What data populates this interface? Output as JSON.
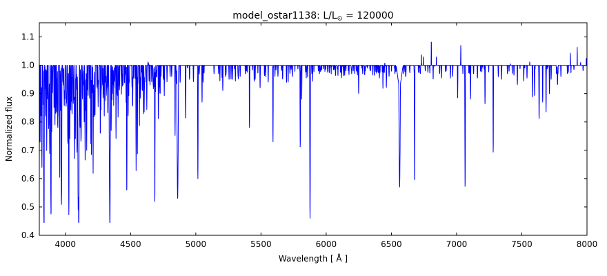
{
  "figure": {
    "title_parts": {
      "prefix": "model_ostar1138: L/L",
      "sun_symbol": "⊙",
      "suffix": " = 120000"
    },
    "background": "#ffffff",
    "frame_color": "#000000"
  },
  "chart_data": {
    "type": "line",
    "title": "model_ostar1138: L/L⊙ = 120000",
    "xlabel": "Wavelength [ Å ]",
    "ylabel": "Normalized flux",
    "xlim": [
      3800,
      8000
    ],
    "ylim": [
      0.4,
      1.15
    ],
    "xticks": [
      4000,
      4500,
      5000,
      5500,
      6000,
      6500,
      7000,
      7500,
      8000
    ],
    "yticks": [
      0.4,
      0.5,
      0.6,
      0.7,
      0.8,
      0.9,
      1.0,
      1.1
    ],
    "grid": false,
    "legend": null,
    "line_color": "#0000ff",
    "continuum": 1.0,
    "series_name": "normalized-flux-spectrum",
    "spectral_lines": [
      [
        3799,
        0.62,
        3
      ],
      [
        3806,
        0.72
      ],
      [
        3813,
        0.82
      ],
      [
        3820,
        0.64
      ],
      [
        3829,
        0.86
      ],
      [
        3835,
        0.51,
        3.5
      ],
      [
        3847,
        0.9
      ],
      [
        3857,
        0.83
      ],
      [
        3863,
        0.88
      ],
      [
        3872,
        0.92
      ],
      [
        3879,
        0.85
      ],
      [
        3889,
        0.5,
        3.5
      ],
      [
        3900,
        0.92
      ],
      [
        3913,
        0.85
      ],
      [
        3920,
        0.79
      ],
      [
        3927,
        0.88
      ],
      [
        3934,
        0.83
      ],
      [
        3944,
        0.82
      ],
      [
        3957,
        0.72
      ],
      [
        3964,
        0.84
      ],
      [
        3970,
        0.52,
        3.5
      ],
      [
        3985,
        0.93
      ],
      [
        3995,
        0.88
      ],
      [
        4004,
        0.91
      ],
      [
        4009,
        0.87
      ],
      [
        4019,
        0.75
      ],
      [
        4026,
        0.58,
        3
      ],
      [
        4035,
        0.9
      ],
      [
        4042,
        0.88
      ],
      [
        4051,
        0.92
      ],
      [
        4062,
        0.9
      ],
      [
        4070,
        0.66
      ],
      [
        4076,
        0.8
      ],
      [
        4089,
        0.72
      ],
      [
        4097,
        0.78
      ],
      [
        4101,
        0.51,
        7,
        1.8
      ],
      [
        4112,
        0.9
      ],
      [
        4121,
        0.78
      ],
      [
        4131,
        0.88
      ],
      [
        4144,
        0.8
      ],
      [
        4153,
        0.85
      ],
      [
        4163,
        0.9
      ],
      [
        4174,
        0.89
      ],
      [
        4186,
        0.88
      ],
      [
        4200,
        0.8
      ],
      [
        4215,
        0.93
      ],
      [
        4227,
        0.94
      ],
      [
        4242,
        0.92
      ],
      [
        4254,
        0.93
      ],
      [
        4267,
        0.87
      ],
      [
        4276,
        0.92
      ],
      [
        4285,
        0.93
      ],
      [
        4292,
        0.9
      ],
      [
        4304,
        0.94
      ],
      [
        4317,
        0.92
      ],
      [
        4326,
        0.93
      ],
      [
        4340,
        0.51,
        7,
        1.8
      ],
      [
        4351,
        0.88
      ],
      [
        4366,
        0.93
      ],
      [
        4379,
        0.95
      ],
      [
        4388,
        0.82
      ],
      [
        4397,
        0.94
      ],
      [
        4415,
        0.92
      ],
      [
        4430,
        0.95
      ],
      [
        4442,
        0.93
      ],
      [
        4454,
        0.95
      ],
      [
        4465,
        0.93
      ],
      [
        4471,
        0.56,
        3
      ],
      [
        4481,
        0.82
      ],
      [
        4490,
        0.94
      ],
      [
        4511,
        0.92
      ],
      [
        4515,
        0.93
      ],
      [
        4542,
        0.7
      ],
      [
        4552,
        0.84
      ],
      [
        4568,
        0.87
      ],
      [
        4575,
        0.9
      ],
      [
        4591,
        0.91
      ],
      [
        4604,
        0.93
      ],
      [
        4610,
        0.94
      ],
      [
        4625,
        0.95
      ],
      [
        4634,
        1.012
      ],
      [
        4641,
        1.015
      ],
      [
        4649,
        0.93
      ],
      [
        4662,
        0.94
      ],
      [
        4676,
        0.95
      ],
      [
        4686,
        0.61,
        3
      ],
      [
        4700,
        0.96
      ],
      [
        4713,
        0.81
      ],
      [
        4733,
        0.96
      ],
      [
        4751,
        0.95
      ],
      [
        4780,
        0.97
      ],
      [
        4803,
        0.96
      ],
      [
        4815,
        0.96
      ],
      [
        4841,
        0.75
      ],
      [
        4861,
        0.53,
        8,
        1.8
      ],
      [
        4880,
        0.94
      ],
      [
        4922,
        0.81,
        3
      ],
      [
        4952,
        0.95
      ],
      [
        4982,
        0.94
      ],
      [
        5016,
        0.6,
        3
      ],
      [
        5048,
        0.87
      ],
      [
        5056,
        0.94
      ],
      [
        5140,
        0.97
      ],
      [
        5175,
        0.97
      ],
      [
        5207,
        0.91
      ],
      [
        5228,
        0.96
      ],
      [
        5255,
        0.95
      ],
      [
        5270,
        0.95
      ],
      [
        5281,
        0.95
      ],
      [
        5324,
        0.96
      ],
      [
        5340,
        0.97
      ],
      [
        5380,
        0.97
      ],
      [
        5412,
        0.82
      ],
      [
        5455,
        0.95
      ],
      [
        5493,
        0.92
      ],
      [
        5535,
        0.96
      ],
      [
        5555,
        0.94
      ],
      [
        5592,
        0.73
      ],
      [
        5630,
        0.96
      ],
      [
        5666,
        0.95
      ],
      [
        5696,
        0.94
      ],
      [
        5722,
        0.97
      ],
      [
        5740,
        0.96
      ],
      [
        5801,
        0.71
      ],
      [
        5812,
        0.88
      ],
      [
        5842,
        0.98
      ],
      [
        5876,
        0.46,
        3.5
      ],
      [
        5890,
        0.97
      ],
      [
        5940,
        0.98
      ],
      [
        5958,
        0.985
      ],
      [
        6011,
        0.975
      ],
      [
        6070,
        0.98
      ],
      [
        6090,
        0.98
      ],
      [
        6133,
        0.963
      ],
      [
        6151,
        0.98
      ],
      [
        6170,
        0.98
      ],
      [
        6196,
        0.975
      ],
      [
        6249,
        0.9
      ],
      [
        6280,
        0.97
      ],
      [
        6300,
        0.98
      ],
      [
        6340,
        0.98
      ],
      [
        6370,
        0.98
      ],
      [
        6408,
        0.955
      ],
      [
        6435,
        0.95
      ],
      [
        6450,
        1.017,
        1.5
      ],
      [
        6462,
        0.947
      ],
      [
        6482,
        0.96
      ],
      [
        6527,
        0.97
      ],
      [
        6563,
        0.93,
        30,
        2
      ],
      [
        6563,
        0.64,
        7,
        1.6
      ],
      [
        6595,
        0.97
      ],
      [
        6610,
        0.97
      ],
      [
        6640,
        0.98
      ],
      [
        6678,
        0.6,
        2.8
      ],
      [
        6715,
        1.025,
        1.5
      ],
      [
        6722,
        0.97
      ],
      [
        6730,
        1.04,
        1.5
      ],
      [
        6745,
        1.03,
        1.5
      ],
      [
        6760,
        0.98
      ],
      [
        6780,
        0.975
      ],
      [
        6806,
        1.087,
        1.8
      ],
      [
        6820,
        0.98
      ],
      [
        6845,
        1.03,
        1.5
      ],
      [
        6870,
        0.97
      ],
      [
        6884,
        0.955
      ],
      [
        6920,
        0.98
      ],
      [
        6952,
        0.955
      ],
      [
        6970,
        0.96
      ],
      [
        7008,
        0.885
      ],
      [
        7032,
        1.07,
        1.8
      ],
      [
        7065,
        0.57,
        3
      ],
      [
        7107,
        0.88
      ],
      [
        7130,
        0.97
      ],
      [
        7160,
        0.96
      ],
      [
        7218,
        0.86
      ],
      [
        7281,
        0.7
      ],
      [
        7320,
        0.96
      ],
      [
        7345,
        0.95
      ],
      [
        7390,
        0.97
      ],
      [
        7413,
        1.005,
        1.5
      ],
      [
        7440,
        0.965
      ],
      [
        7466,
        0.93
      ],
      [
        7515,
        0.97
      ],
      [
        7540,
        0.955
      ],
      [
        7561,
        1.012,
        1.5
      ],
      [
        7582,
        0.885
      ],
      [
        7598,
        0.89
      ],
      [
        7633,
        0.81
      ],
      [
        7660,
        0.87
      ],
      [
        7686,
        0.83
      ],
      [
        7712,
        0.9
      ],
      [
        7725,
        0.95
      ],
      [
        7766,
        0.97
      ],
      [
        7774,
        0.93
      ],
      [
        7800,
        0.96
      ],
      [
        7850,
        0.97
      ],
      [
        7872,
        1.043,
        1.5
      ],
      [
        7900,
        0.985
      ],
      [
        7925,
        1.065,
        1.5
      ],
      [
        7951,
        1.01,
        1.5
      ],
      [
        7970,
        0.99
      ],
      [
        7995,
        1.025,
        1.5
      ]
    ],
    "line_forest": [
      {
        "range": [
          3802,
          4355
        ],
        "count": 110,
        "flux": [
          0.84,
          0.98
        ],
        "halfwidth": [
          1.5,
          2.4
        ],
        "seed": 11
      },
      {
        "range": [
          4355,
          4760
        ],
        "count": 55,
        "flux": [
          0.89,
          0.985
        ],
        "halfwidth": [
          1.5,
          2.2
        ],
        "seed": 22
      },
      {
        "range": [
          4760,
          5900
        ],
        "count": 38,
        "flux": [
          0.94,
          0.995
        ],
        "halfwidth": [
          1.5,
          2.0
        ],
        "seed": 33
      },
      {
        "range": [
          5900,
          6540
        ],
        "count": 55,
        "flux": [
          0.963,
          0.996
        ],
        "halfwidth": [
          1.5,
          2.0
        ],
        "seed": 44
      },
      {
        "range": [
          6560,
          7990
        ],
        "count": 42,
        "flux": [
          0.968,
          0.997
        ],
        "halfwidth": [
          1.5,
          2.0
        ],
        "seed": 55
      }
    ]
  }
}
